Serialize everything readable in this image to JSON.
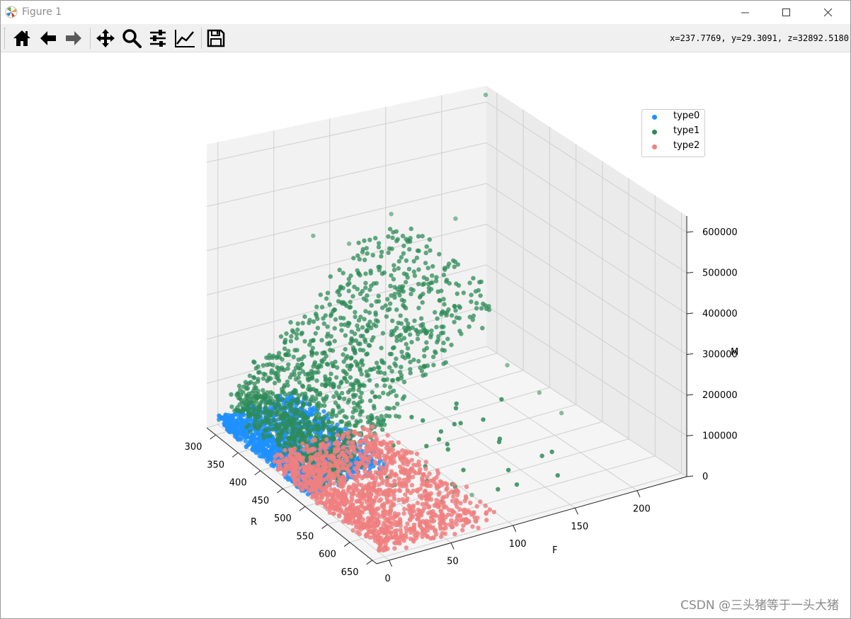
{
  "window": {
    "title": "Figure 1",
    "controls": [
      "minimize",
      "maximize",
      "close"
    ]
  },
  "toolbar": {
    "buttons": [
      {
        "name": "home-icon",
        "tooltip": "Home"
      },
      {
        "name": "back-arrow-icon",
        "tooltip": "Back"
      },
      {
        "name": "forward-arrow-icon",
        "tooltip": "Forward"
      },
      {
        "name": "pan-icon",
        "tooltip": "Pan"
      },
      {
        "name": "zoom-icon",
        "tooltip": "Zoom"
      },
      {
        "name": "subplots-config-icon",
        "tooltip": "Configure subplots"
      },
      {
        "name": "edit-axis-icon",
        "tooltip": "Edit axis"
      },
      {
        "name": "save-icon",
        "tooltip": "Save"
      }
    ],
    "coordinates": "x=237.7769, y=29.3091, z=32892.5180"
  },
  "watermark": "CSDN @三头猪等于一头大猪",
  "colors": {
    "type0": "#1e90ff",
    "type1": "#2e8b57",
    "type2": "#f08080"
  },
  "chart_data": {
    "type": "scatter",
    "projection": "3d",
    "xlabel": "R",
    "ylabel": "F",
    "zlabel": "M",
    "x_ticks": [
      "300",
      "350",
      "400",
      "450",
      "500",
      "550",
      "600",
      "650"
    ],
    "y_ticks": [
      "0",
      "50",
      "100",
      "150",
      "200"
    ],
    "z_ticks": [
      "0",
      "100000",
      "200000",
      "300000",
      "400000",
      "500000",
      "600000"
    ],
    "xlim": [
      280,
      660
    ],
    "ylim": [
      -10,
      240
    ],
    "zlim": [
      0,
      640000
    ],
    "legend": {
      "placement": "top-right",
      "entries": [
        "type0",
        "type1",
        "type2"
      ]
    },
    "grid": true,
    "series": [
      {
        "name": "type0",
        "color": "#1e90ff",
        "region": {
          "R": [
            280,
            480
          ],
          "F": [
            0,
            70
          ],
          "M": [
            0,
            30000
          ]
        }
      },
      {
        "name": "type1",
        "color": "#2e8b57",
        "region": {
          "R": [
            280,
            600
          ],
          "F": [
            0,
            220
          ],
          "M": [
            20000,
            580000
          ]
        },
        "outliers": [
          [
            300,
            230,
            640000
          ],
          [
            420,
            150,
            490000
          ],
          [
            360,
            120,
            470000
          ],
          [
            340,
            60,
            440000
          ],
          [
            320,
            100,
            380000
          ],
          [
            500,
            160,
            200000
          ],
          [
            540,
            170,
            160000
          ],
          [
            560,
            180,
            120000
          ],
          [
            600,
            90,
            30000
          ]
        ]
      },
      {
        "name": "type2",
        "color": "#f08080",
        "region": {
          "R": [
            400,
            650
          ],
          "F": [
            0,
            90
          ],
          "M": [
            0,
            40000
          ]
        }
      }
    ]
  }
}
